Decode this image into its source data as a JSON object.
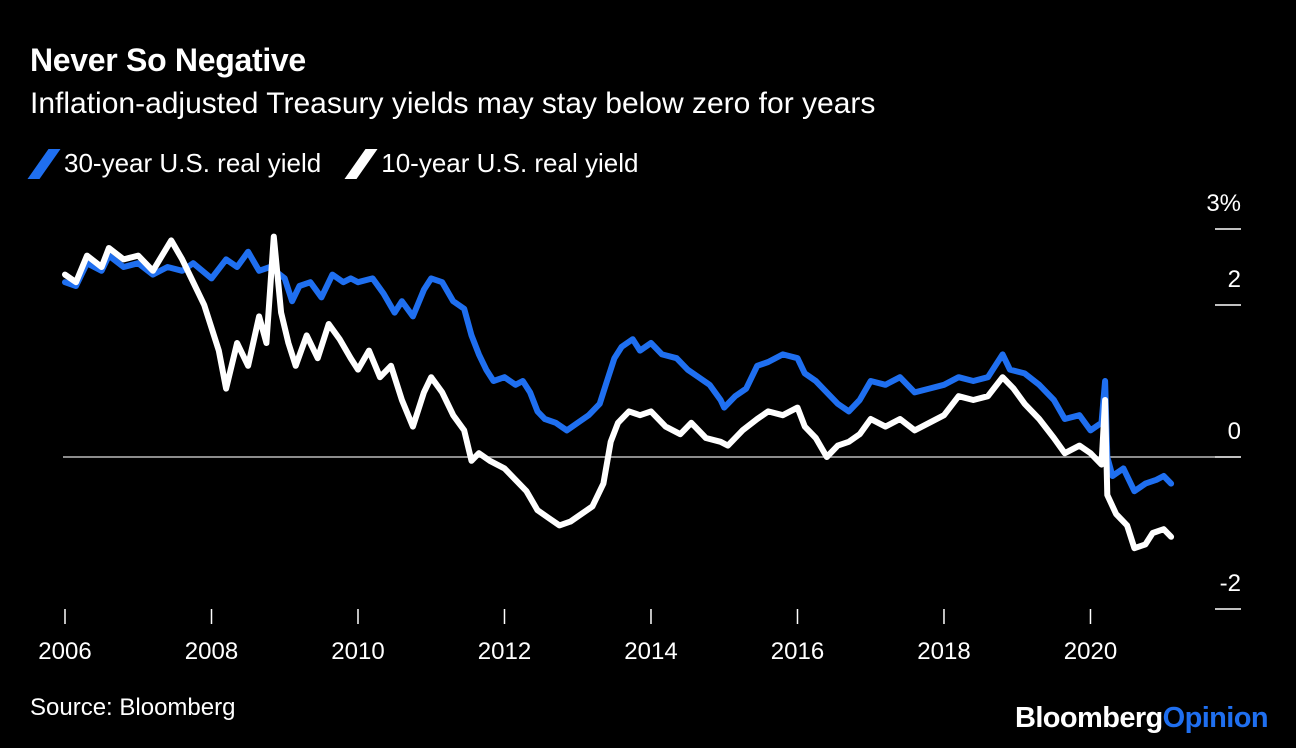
{
  "header": {
    "title": "Never So Negative",
    "subtitle": "Inflation-adjusted Treasury yields may stay below zero for years"
  },
  "footer": {
    "source": "Source: Bloomberg",
    "brand_part1": "Bloomberg",
    "brand_part2": "Opinion"
  },
  "colors": {
    "background": "#000000",
    "series_30y": "#1f6ff0",
    "series_10y": "#ffffff",
    "zero_line": "#bbbbbb"
  },
  "chart_data": {
    "type": "line",
    "title": "Never So Negative",
    "subtitle": "Inflation-adjusted Treasury yields may stay below zero for years",
    "xlabel": "",
    "ylabel": "",
    "xlim": [
      2006.0,
      2021.7
    ],
    "ylim": [
      -2,
      3
    ],
    "x_ticks": [
      2006,
      2008,
      2010,
      2012,
      2014,
      2016,
      2018,
      2020
    ],
    "x_tick_labels": [
      "2006",
      "2008",
      "2010",
      "2012",
      "2014",
      "2016",
      "2018",
      "2020"
    ],
    "y_ticks": [
      3,
      2,
      0,
      -2
    ],
    "y_tick_labels": [
      "3%",
      "2",
      "0",
      "-2"
    ],
    "grid": false,
    "zero_line": true,
    "legend_position": "top-left",
    "series": [
      {
        "name": "30-year U.S. real yield",
        "color": "#1f6ff0",
        "points": [
          [
            2006.0,
            2.3
          ],
          [
            2006.15,
            2.25
          ],
          [
            2006.3,
            2.55
          ],
          [
            2006.5,
            2.45
          ],
          [
            2006.6,
            2.65
          ],
          [
            2006.8,
            2.5
          ],
          [
            2007.0,
            2.55
          ],
          [
            2007.2,
            2.4
          ],
          [
            2007.4,
            2.5
          ],
          [
            2007.6,
            2.45
          ],
          [
            2007.75,
            2.55
          ],
          [
            2008.0,
            2.35
          ],
          [
            2008.2,
            2.6
          ],
          [
            2008.35,
            2.5
          ],
          [
            2008.5,
            2.7
          ],
          [
            2008.65,
            2.45
          ],
          [
            2008.8,
            2.5
          ],
          [
            2009.0,
            2.35
          ],
          [
            2009.1,
            2.05
          ],
          [
            2009.2,
            2.25
          ],
          [
            2009.35,
            2.3
          ],
          [
            2009.5,
            2.1
          ],
          [
            2009.65,
            2.4
          ],
          [
            2009.8,
            2.3
          ],
          [
            2009.9,
            2.35
          ],
          [
            2010.0,
            2.3
          ],
          [
            2010.2,
            2.35
          ],
          [
            2010.35,
            2.15
          ],
          [
            2010.5,
            1.9
          ],
          [
            2010.6,
            2.05
          ],
          [
            2010.75,
            1.85
          ],
          [
            2010.9,
            2.2
          ],
          [
            2011.0,
            2.35
          ],
          [
            2011.15,
            2.3
          ],
          [
            2011.3,
            2.05
          ],
          [
            2011.45,
            1.95
          ],
          [
            2011.55,
            1.6
          ],
          [
            2011.65,
            1.35
          ],
          [
            2011.75,
            1.15
          ],
          [
            2011.85,
            1.0
          ],
          [
            2012.0,
            1.05
          ],
          [
            2012.15,
            0.95
          ],
          [
            2012.25,
            1.0
          ],
          [
            2012.35,
            0.85
          ],
          [
            2012.45,
            0.6
          ],
          [
            2012.55,
            0.5
          ],
          [
            2012.7,
            0.45
          ],
          [
            2012.85,
            0.35
          ],
          [
            2013.0,
            0.45
          ],
          [
            2013.15,
            0.55
          ],
          [
            2013.3,
            0.7
          ],
          [
            2013.4,
            1.0
          ],
          [
            2013.5,
            1.3
          ],
          [
            2013.6,
            1.45
          ],
          [
            2013.75,
            1.55
          ],
          [
            2013.85,
            1.4
          ],
          [
            2014.0,
            1.5
          ],
          [
            2014.15,
            1.35
          ],
          [
            2014.35,
            1.3
          ],
          [
            2014.5,
            1.15
          ],
          [
            2014.65,
            1.05
          ],
          [
            2014.8,
            0.95
          ],
          [
            2014.95,
            0.75
          ],
          [
            2015.0,
            0.65
          ],
          [
            2015.15,
            0.8
          ],
          [
            2015.3,
            0.9
          ],
          [
            2015.45,
            1.2
          ],
          [
            2015.6,
            1.25
          ],
          [
            2015.8,
            1.35
          ],
          [
            2016.0,
            1.3
          ],
          [
            2016.1,
            1.1
          ],
          [
            2016.25,
            1.0
          ],
          [
            2016.4,
            0.85
          ],
          [
            2016.55,
            0.7
          ],
          [
            2016.7,
            0.6
          ],
          [
            2016.85,
            0.75
          ],
          [
            2017.0,
            1.0
          ],
          [
            2017.2,
            0.95
          ],
          [
            2017.4,
            1.05
          ],
          [
            2017.6,
            0.85
          ],
          [
            2017.8,
            0.9
          ],
          [
            2018.0,
            0.95
          ],
          [
            2018.2,
            1.05
          ],
          [
            2018.4,
            1.0
          ],
          [
            2018.6,
            1.05
          ],
          [
            2018.8,
            1.35
          ],
          [
            2018.9,
            1.15
          ],
          [
            2019.1,
            1.1
          ],
          [
            2019.3,
            0.95
          ],
          [
            2019.5,
            0.75
          ],
          [
            2019.65,
            0.5
          ],
          [
            2019.85,
            0.55
          ],
          [
            2020.0,
            0.35
          ],
          [
            2020.15,
            0.45
          ],
          [
            2020.2,
            1.0
          ],
          [
            2020.23,
            0.0
          ],
          [
            2020.3,
            -0.25
          ],
          [
            2020.45,
            -0.15
          ],
          [
            2020.6,
            -0.45
          ],
          [
            2020.75,
            -0.35
          ],
          [
            2020.9,
            -0.3
          ],
          [
            2021.0,
            -0.25
          ],
          [
            2021.1,
            -0.35
          ]
        ]
      },
      {
        "name": "10-year U.S. real yield",
        "color": "#ffffff",
        "points": [
          [
            2006.0,
            2.4
          ],
          [
            2006.15,
            2.3
          ],
          [
            2006.3,
            2.65
          ],
          [
            2006.5,
            2.5
          ],
          [
            2006.6,
            2.75
          ],
          [
            2006.8,
            2.6
          ],
          [
            2007.0,
            2.65
          ],
          [
            2007.2,
            2.45
          ],
          [
            2007.45,
            2.85
          ],
          [
            2007.6,
            2.6
          ],
          [
            2007.75,
            2.3
          ],
          [
            2007.9,
            2.0
          ],
          [
            2008.1,
            1.4
          ],
          [
            2008.2,
            0.9
          ],
          [
            2008.35,
            1.5
          ],
          [
            2008.5,
            1.2
          ],
          [
            2008.65,
            1.85
          ],
          [
            2008.75,
            1.5
          ],
          [
            2008.85,
            2.9
          ],
          [
            2008.95,
            1.9
          ],
          [
            2009.05,
            1.5
          ],
          [
            2009.15,
            1.2
          ],
          [
            2009.3,
            1.6
          ],
          [
            2009.45,
            1.3
          ],
          [
            2009.6,
            1.75
          ],
          [
            2009.75,
            1.55
          ],
          [
            2009.9,
            1.3
          ],
          [
            2010.0,
            1.15
          ],
          [
            2010.15,
            1.4
          ],
          [
            2010.3,
            1.05
          ],
          [
            2010.45,
            1.2
          ],
          [
            2010.6,
            0.75
          ],
          [
            2010.75,
            0.4
          ],
          [
            2010.9,
            0.85
          ],
          [
            2011.0,
            1.05
          ],
          [
            2011.15,
            0.85
          ],
          [
            2011.3,
            0.55
          ],
          [
            2011.45,
            0.35
          ],
          [
            2011.55,
            -0.05
          ],
          [
            2011.65,
            0.05
          ],
          [
            2011.8,
            -0.05
          ],
          [
            2012.0,
            -0.15
          ],
          [
            2012.15,
            -0.3
          ],
          [
            2012.3,
            -0.45
          ],
          [
            2012.45,
            -0.7
          ],
          [
            2012.6,
            -0.8
          ],
          [
            2012.75,
            -0.9
          ],
          [
            2012.9,
            -0.85
          ],
          [
            2013.05,
            -0.75
          ],
          [
            2013.2,
            -0.65
          ],
          [
            2013.35,
            -0.35
          ],
          [
            2013.45,
            0.2
          ],
          [
            2013.55,
            0.45
          ],
          [
            2013.7,
            0.6
          ],
          [
            2013.85,
            0.55
          ],
          [
            2014.0,
            0.6
          ],
          [
            2014.2,
            0.4
          ],
          [
            2014.4,
            0.3
          ],
          [
            2014.55,
            0.45
          ],
          [
            2014.75,
            0.25
          ],
          [
            2014.95,
            0.2
          ],
          [
            2015.05,
            0.15
          ],
          [
            2015.25,
            0.35
          ],
          [
            2015.45,
            0.5
          ],
          [
            2015.6,
            0.6
          ],
          [
            2015.8,
            0.55
          ],
          [
            2016.0,
            0.65
          ],
          [
            2016.1,
            0.4
          ],
          [
            2016.25,
            0.25
          ],
          [
            2016.4,
            0.0
          ],
          [
            2016.55,
            0.15
          ],
          [
            2016.7,
            0.2
          ],
          [
            2016.85,
            0.3
          ],
          [
            2017.0,
            0.5
          ],
          [
            2017.2,
            0.4
          ],
          [
            2017.4,
            0.5
          ],
          [
            2017.6,
            0.35
          ],
          [
            2017.8,
            0.45
          ],
          [
            2018.0,
            0.55
          ],
          [
            2018.2,
            0.8
          ],
          [
            2018.4,
            0.75
          ],
          [
            2018.6,
            0.8
          ],
          [
            2018.8,
            1.05
          ],
          [
            2018.95,
            0.9
          ],
          [
            2019.1,
            0.7
          ],
          [
            2019.3,
            0.5
          ],
          [
            2019.5,
            0.25
          ],
          [
            2019.65,
            0.05
          ],
          [
            2019.85,
            0.15
          ],
          [
            2020.0,
            0.05
          ],
          [
            2020.15,
            -0.1
          ],
          [
            2020.2,
            0.75
          ],
          [
            2020.23,
            -0.5
          ],
          [
            2020.35,
            -0.75
          ],
          [
            2020.5,
            -0.9
          ],
          [
            2020.6,
            -1.2
          ],
          [
            2020.75,
            -1.15
          ],
          [
            2020.85,
            -1.0
          ],
          [
            2021.0,
            -0.95
          ],
          [
            2021.1,
            -1.05
          ]
        ]
      }
    ]
  }
}
